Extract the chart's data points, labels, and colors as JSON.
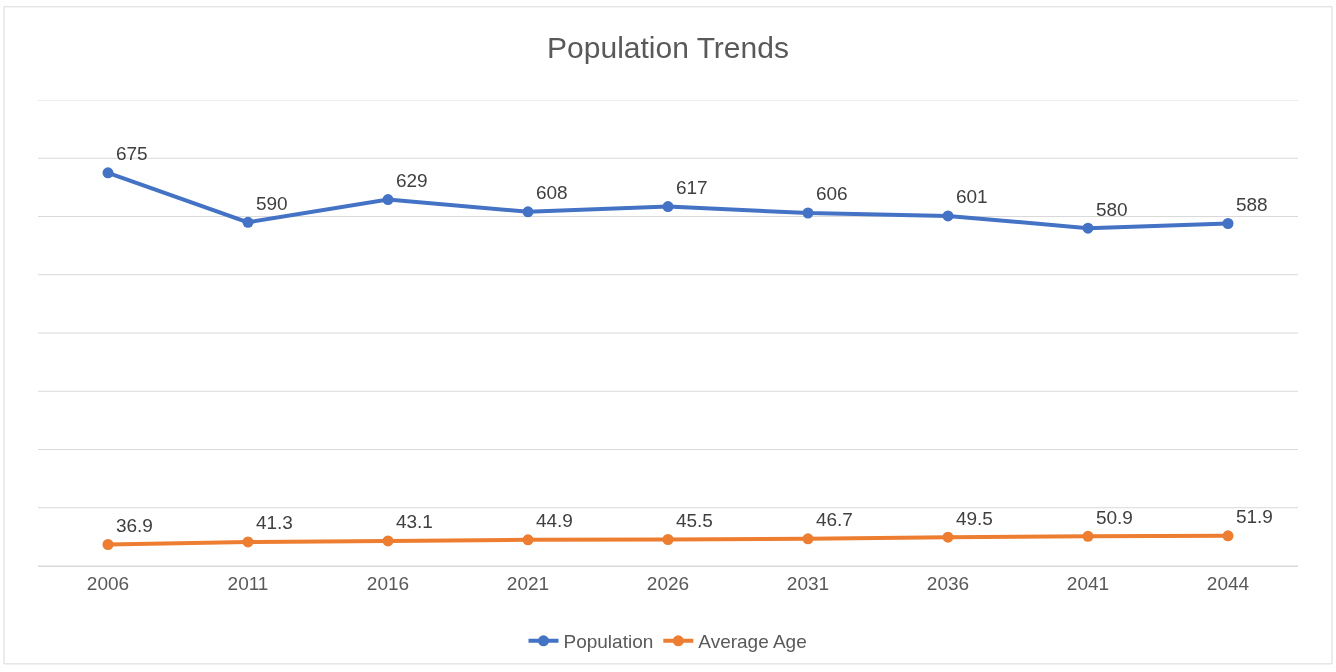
{
  "chart_data": {
    "type": "line",
    "title": "Population Trends",
    "categories": [
      "2006",
      "2011",
      "2016",
      "2021",
      "2026",
      "2031",
      "2036",
      "2041",
      "2044"
    ],
    "series": [
      {
        "name": "Population",
        "color": "#4472c4",
        "values": [
          675,
          590,
          629,
          608,
          617,
          606,
          601,
          580,
          588
        ]
      },
      {
        "name": "Average Age",
        "color": "#ed7d31",
        "values": [
          36.9,
          41.3,
          43.1,
          44.9,
          45.5,
          46.7,
          49.5,
          50.9,
          51.9
        ]
      }
    ],
    "ylim": [
      0,
      800
    ],
    "yticks": [
      {
        "value": 0,
        "label": null
      },
      {
        "value": 100,
        "label": null
      },
      {
        "value": 200,
        "label": null
      },
      {
        "value": 300,
        "label": null
      },
      {
        "value": 400,
        "label": null
      },
      {
        "value": 500,
        "label": null
      },
      {
        "value": 600,
        "label": null
      },
      {
        "value": 700,
        "label": null
      },
      {
        "value": 800,
        "label": null
      }
    ],
    "tick_labels": "x",
    "grid": "y",
    "legend": "bottom",
    "marker": "circle",
    "line_style": "solid",
    "data_labels": true
  }
}
